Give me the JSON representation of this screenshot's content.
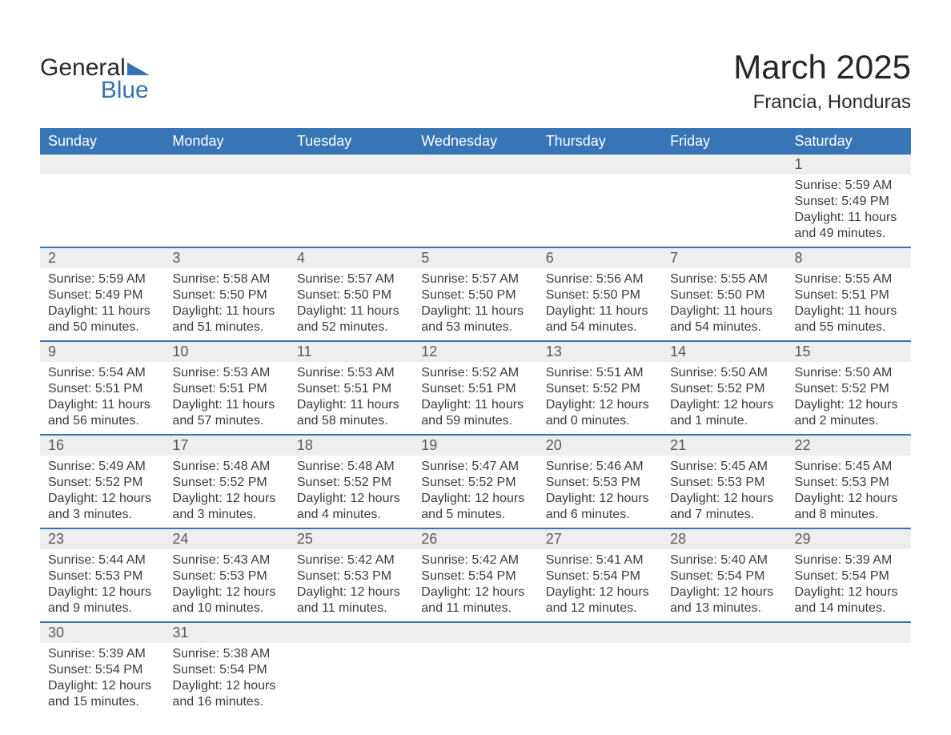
{
  "brand": {
    "word1": "General",
    "word2": "Blue",
    "triangle_color": "#3672b4",
    "text_color_top": "#2a2a2a",
    "text_color_bottom": "#3672b4"
  },
  "title": {
    "month_year": "March 2025",
    "location": "Francia, Honduras",
    "title_fontsize": 42,
    "subtitle_fontsize": 24
  },
  "calendar": {
    "type": "table",
    "header_bg": "#3875b6",
    "header_fg": "#ffffff",
    "daynum_bg": "#eeeeee",
    "daynum_fg": "#5a5a5a",
    "detail_bg": "#ffffff",
    "detail_fg": "#3c3c3c",
    "row_divider_color": "#3875b6",
    "columns": [
      "Sunday",
      "Monday",
      "Tuesday",
      "Wednesday",
      "Thursday",
      "Friday",
      "Saturday"
    ],
    "weeks": [
      {
        "nums": [
          "",
          "",
          "",
          "",
          "",
          "",
          "1"
        ],
        "detail": [
          "",
          "",
          "",
          "",
          "",
          "",
          "Sunrise: 5:59 AM\nSunset: 5:49 PM\nDaylight: 11 hours and 49 minutes."
        ]
      },
      {
        "nums": [
          "2",
          "3",
          "4",
          "5",
          "6",
          "7",
          "8"
        ],
        "detail": [
          "Sunrise: 5:59 AM\nSunset: 5:49 PM\nDaylight: 11 hours and 50 minutes.",
          "Sunrise: 5:58 AM\nSunset: 5:50 PM\nDaylight: 11 hours and 51 minutes.",
          "Sunrise: 5:57 AM\nSunset: 5:50 PM\nDaylight: 11 hours and 52 minutes.",
          "Sunrise: 5:57 AM\nSunset: 5:50 PM\nDaylight: 11 hours and 53 minutes.",
          "Sunrise: 5:56 AM\nSunset: 5:50 PM\nDaylight: 11 hours and 54 minutes.",
          "Sunrise: 5:55 AM\nSunset: 5:50 PM\nDaylight: 11 hours and 54 minutes.",
          "Sunrise: 5:55 AM\nSunset: 5:51 PM\nDaylight: 11 hours and 55 minutes."
        ]
      },
      {
        "nums": [
          "9",
          "10",
          "11",
          "12",
          "13",
          "14",
          "15"
        ],
        "detail": [
          "Sunrise: 5:54 AM\nSunset: 5:51 PM\nDaylight: 11 hours and 56 minutes.",
          "Sunrise: 5:53 AM\nSunset: 5:51 PM\nDaylight: 11 hours and 57 minutes.",
          "Sunrise: 5:53 AM\nSunset: 5:51 PM\nDaylight: 11 hours and 58 minutes.",
          "Sunrise: 5:52 AM\nSunset: 5:51 PM\nDaylight: 11 hours and 59 minutes.",
          "Sunrise: 5:51 AM\nSunset: 5:52 PM\nDaylight: 12 hours and 0 minutes.",
          "Sunrise: 5:50 AM\nSunset: 5:52 PM\nDaylight: 12 hours and 1 minute.",
          "Sunrise: 5:50 AM\nSunset: 5:52 PM\nDaylight: 12 hours and 2 minutes."
        ]
      },
      {
        "nums": [
          "16",
          "17",
          "18",
          "19",
          "20",
          "21",
          "22"
        ],
        "detail": [
          "Sunrise: 5:49 AM\nSunset: 5:52 PM\nDaylight: 12 hours and 3 minutes.",
          "Sunrise: 5:48 AM\nSunset: 5:52 PM\nDaylight: 12 hours and 3 minutes.",
          "Sunrise: 5:48 AM\nSunset: 5:52 PM\nDaylight: 12 hours and 4 minutes.",
          "Sunrise: 5:47 AM\nSunset: 5:52 PM\nDaylight: 12 hours and 5 minutes.",
          "Sunrise: 5:46 AM\nSunset: 5:53 PM\nDaylight: 12 hours and 6 minutes.",
          "Sunrise: 5:45 AM\nSunset: 5:53 PM\nDaylight: 12 hours and 7 minutes.",
          "Sunrise: 5:45 AM\nSunset: 5:53 PM\nDaylight: 12 hours and 8 minutes."
        ]
      },
      {
        "nums": [
          "23",
          "24",
          "25",
          "26",
          "27",
          "28",
          "29"
        ],
        "detail": [
          "Sunrise: 5:44 AM\nSunset: 5:53 PM\nDaylight: 12 hours and 9 minutes.",
          "Sunrise: 5:43 AM\nSunset: 5:53 PM\nDaylight: 12 hours and 10 minutes.",
          "Sunrise: 5:42 AM\nSunset: 5:53 PM\nDaylight: 12 hours and 11 minutes.",
          "Sunrise: 5:42 AM\nSunset: 5:54 PM\nDaylight: 12 hours and 11 minutes.",
          "Sunrise: 5:41 AM\nSunset: 5:54 PM\nDaylight: 12 hours and 12 minutes.",
          "Sunrise: 5:40 AM\nSunset: 5:54 PM\nDaylight: 12 hours and 13 minutes.",
          "Sunrise: 5:39 AM\nSunset: 5:54 PM\nDaylight: 12 hours and 14 minutes."
        ]
      },
      {
        "nums": [
          "30",
          "31",
          "",
          "",
          "",
          "",
          ""
        ],
        "detail": [
          "Sunrise: 5:39 AM\nSunset: 5:54 PM\nDaylight: 12 hours and 15 minutes.",
          "Sunrise: 5:38 AM\nSunset: 5:54 PM\nDaylight: 12 hours and 16 minutes.",
          "",
          "",
          "",
          "",
          ""
        ]
      }
    ]
  }
}
